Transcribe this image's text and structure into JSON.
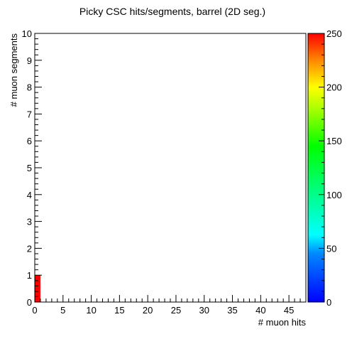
{
  "chart_data": {
    "type": "heatmap",
    "title": "Picky CSC hits/segments, barrel (2D seg.)",
    "xlabel": "# muon hits",
    "ylabel": "# muon segments",
    "x_ticks_labeled": [
      0,
      5,
      10,
      15,
      20,
      25,
      30,
      35,
      40,
      45
    ],
    "y_ticks_labeled": [
      0,
      1,
      2,
      3,
      4,
      5,
      6,
      7,
      8,
      9,
      10
    ],
    "xlim": [
      0,
      48
    ],
    "ylim": [
      0,
      10
    ],
    "bins": [
      {
        "x": [
          0,
          1
        ],
        "y": [
          0,
          1
        ],
        "value": 250
      }
    ],
    "colorbar": {
      "min": 0,
      "max": 250,
      "ticks": [
        0,
        50,
        100,
        150,
        200,
        250
      ],
      "palette": "rainbow"
    },
    "grid": false
  }
}
